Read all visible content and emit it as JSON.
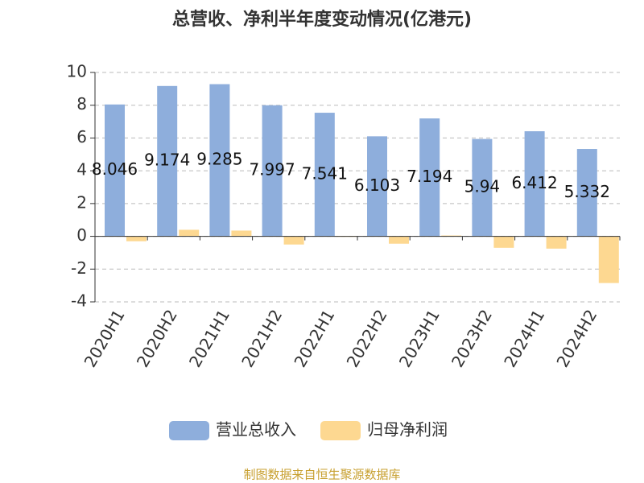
{
  "chart_data": {
    "type": "bar",
    "title": "总营收、净利半年度变动情况(亿港元)",
    "categories": [
      "2020H1",
      "2020H2",
      "2021H1",
      "2021H2",
      "2022H1",
      "2022H2",
      "2023H1",
      "2023H2",
      "2024H1",
      "2024H2"
    ],
    "series": [
      {
        "name": "营业总收入",
        "color": "#8eaedc",
        "values": [
          8.046,
          9.174,
          9.285,
          7.997,
          7.541,
          6.103,
          7.194,
          5.94,
          6.412,
          5.332
        ],
        "show_labels": true
      },
      {
        "name": "归母净利润",
        "color": "#fdd891",
        "values": [
          -0.3,
          0.4,
          0.35,
          -0.5,
          0.02,
          -0.45,
          0.05,
          -0.7,
          -0.75,
          -2.85
        ]
      }
    ],
    "ylim": [
      -4,
      10
    ],
    "yticks": [
      -4,
      -2,
      0,
      2,
      4,
      6,
      8,
      10
    ],
    "grid": true,
    "legend": "bottom",
    "source": "制图数据来自恒生聚源数据库"
  }
}
